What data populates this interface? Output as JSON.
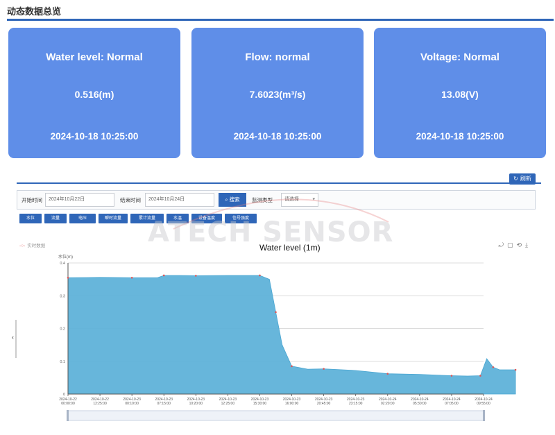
{
  "header": {
    "title": "动态数据总览"
  },
  "cards": [
    {
      "title": "Water level: Normal",
      "value": "0.516(m)",
      "time": "2024-10-18 10:25:00"
    },
    {
      "title": "Flow: normal",
      "value": "7.6023(m³/s)",
      "time": "2024-10-18 10:25:00"
    },
    {
      "title": "Voltage: Normal",
      "value": "13.08(V)",
      "time": "2024-10-18 10:25:00"
    }
  ],
  "panel": {
    "refresh_label": "刷新",
    "filters": {
      "start_label": "开始时间",
      "start_value": "2024年10月22日",
      "end_label": "结束时间",
      "end_value": "2024年10月24日",
      "search_label": "搜索",
      "type_label": "监测类型",
      "type_value": "请选择"
    },
    "tabs": [
      "水位",
      "流量",
      "电压",
      "瞬时流量",
      "累计流量",
      "水温",
      "设备温度",
      "信号强度"
    ],
    "legend_label": "实时数据",
    "watermark": "ATECH SENSOR"
  },
  "colors": {
    "card_bg": "#5f8ee8",
    "accent": "#2f66b8",
    "area_fill": "#5ab0d8",
    "marker": "#e05555"
  },
  "icons": {
    "refresh": "refresh-icon",
    "search": "search-icon",
    "toolbox": [
      "zoom-reset-icon",
      "data-view-icon",
      "restore-icon",
      "download-icon"
    ]
  },
  "chart_data": {
    "type": "area",
    "title": "Water level (1m)",
    "ylabel": "水位(m)",
    "ylim": [
      0,
      0.4
    ],
    "yticks": [
      "0",
      "0.1",
      "0.2",
      "0.3",
      "0.4"
    ],
    "xticks": [
      [
        "2024-10-22",
        "00:00:00"
      ],
      [
        "2024-10-22",
        "12:25:00"
      ],
      [
        "2024-10-23",
        "00:10:00"
      ],
      [
        "2024-10-23",
        "07:15:00"
      ],
      [
        "2024-10-23",
        "10:20:00"
      ],
      [
        "2024-10-23",
        "12:25:00"
      ],
      [
        "2024-10-23",
        "15:30:00"
      ],
      [
        "2024-10-23",
        "16:00:00"
      ],
      [
        "2024-10-23",
        "20:45:00"
      ],
      [
        "2024-10-23",
        "23:15:00"
      ],
      [
        "2024-10-24",
        "02:20:00"
      ],
      [
        "2024-10-24",
        "05:30:00"
      ],
      [
        "2024-10-24",
        "07:05:00"
      ],
      [
        "2024-10-24",
        "09:55:00"
      ]
    ],
    "series": [
      {
        "x": [
          0,
          1,
          2,
          2.8,
          3,
          3.5,
          4,
          5,
          6,
          6.3,
          6.5,
          6.7,
          7,
          7.5,
          8,
          9,
          10,
          11,
          12,
          12.5,
          12.9,
          13.1,
          13.3,
          13.5,
          14
        ],
        "y": [
          0.355,
          0.356,
          0.355,
          0.355,
          0.362,
          0.362,
          0.361,
          0.362,
          0.362,
          0.35,
          0.25,
          0.15,
          0.085,
          0.076,
          0.077,
          0.072,
          0.062,
          0.06,
          0.056,
          0.055,
          0.056,
          0.108,
          0.082,
          0.074,
          0.074
        ]
      }
    ],
    "grid": true
  }
}
